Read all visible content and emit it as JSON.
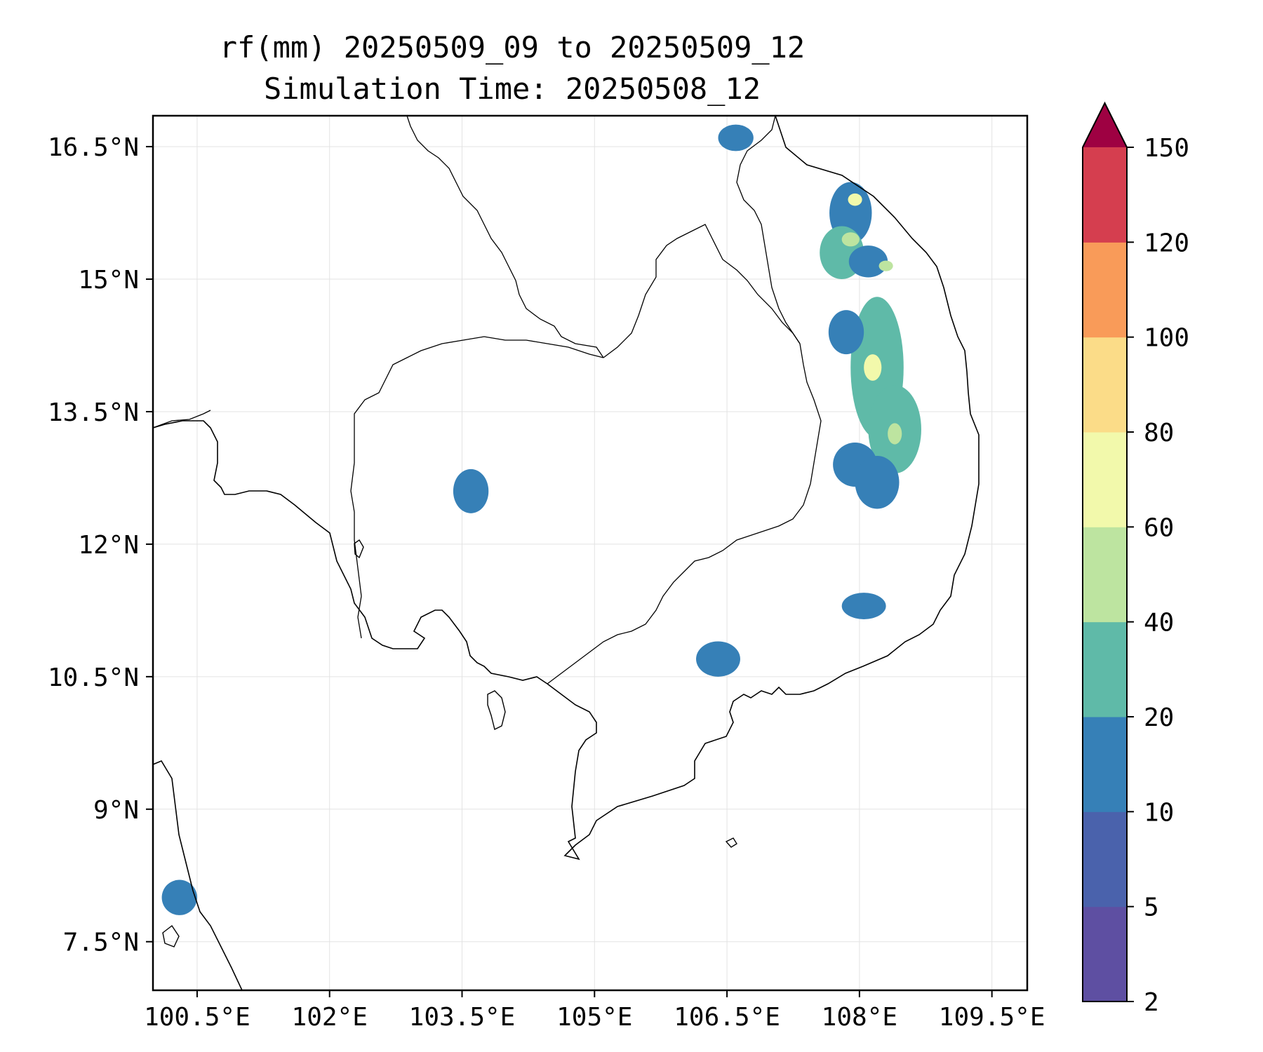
{
  "title": {
    "line1": "rf(mm) 20250509_09 to 20250509_12",
    "line2": "Simulation Time: 20250508_12"
  },
  "map": {
    "lon_range": [
      100.0,
      109.9
    ],
    "lat_range": [
      6.95,
      16.85
    ],
    "lon_ticks": [
      {
        "value": 100.5,
        "label": "100.5°E"
      },
      {
        "value": 102.0,
        "label": "102°E"
      },
      {
        "value": 103.5,
        "label": "103.5°E"
      },
      {
        "value": 105.0,
        "label": "105°E"
      },
      {
        "value": 106.5,
        "label": "106.5°E"
      },
      {
        "value": 108.0,
        "label": "108°E"
      },
      {
        "value": 109.5,
        "label": "109.5°E"
      }
    ],
    "lat_ticks": [
      {
        "value": 16.5,
        "label": "16.5°N"
      },
      {
        "value": 15.0,
        "label": "15°N"
      },
      {
        "value": 13.5,
        "label": "13.5°N"
      },
      {
        "value": 12.0,
        "label": "12°N"
      },
      {
        "value": 10.5,
        "label": "10.5°N"
      },
      {
        "value": 9.0,
        "label": "9°N"
      },
      {
        "value": 7.5,
        "label": "7.5°N"
      }
    ],
    "grid": true
  },
  "colorbar": {
    "levels": [
      {
        "value": 2,
        "label": "2"
      },
      {
        "value": 5,
        "label": "5"
      },
      {
        "value": 10,
        "label": "10"
      },
      {
        "value": 20,
        "label": "20"
      },
      {
        "value": 40,
        "label": "40"
      },
      {
        "value": 60,
        "label": "60"
      },
      {
        "value": 80,
        "label": "80"
      },
      {
        "value": 100,
        "label": "100"
      },
      {
        "value": 120,
        "label": "120"
      },
      {
        "value": 150,
        "label": "150"
      }
    ],
    "colors": [
      "#5e4fa2",
      "#4a62ac",
      "#3680b7",
      "#5fbaa8",
      "#bde4a0",
      "#f2f9ab",
      "#fbdc88",
      "#f99b59",
      "#d53e4f"
    ],
    "extend_color": "#9e0142"
  },
  "rainfall_cells": [
    {
      "lon": 107.9,
      "lat": 15.75,
      "rx": 0.24,
      "ry": 0.35,
      "level": 2
    },
    {
      "lon": 107.8,
      "lat": 15.3,
      "rx": 0.25,
      "ry": 0.3,
      "level": 3
    },
    {
      "lon": 108.2,
      "lat": 14.0,
      "rx": 0.3,
      "ry": 0.8,
      "level": 3
    },
    {
      "lon": 108.4,
      "lat": 13.3,
      "rx": 0.3,
      "ry": 0.5,
      "level": 3
    },
    {
      "lon": 108.1,
      "lat": 15.2,
      "rx": 0.22,
      "ry": 0.18,
      "level": 2
    },
    {
      "lon": 107.85,
      "lat": 14.4,
      "rx": 0.2,
      "ry": 0.25,
      "level": 2
    },
    {
      "lon": 107.95,
      "lat": 12.9,
      "rx": 0.25,
      "ry": 0.25,
      "level": 2
    },
    {
      "lon": 108.2,
      "lat": 12.7,
      "rx": 0.25,
      "ry": 0.3,
      "level": 2
    },
    {
      "lon": 108.05,
      "lat": 11.3,
      "rx": 0.25,
      "ry": 0.15,
      "level": 2
    },
    {
      "lon": 103.6,
      "lat": 12.6,
      "rx": 0.2,
      "ry": 0.25,
      "level": 2
    },
    {
      "lon": 106.6,
      "lat": 16.6,
      "rx": 0.2,
      "ry": 0.15,
      "level": 2
    },
    {
      "lon": 106.4,
      "lat": 10.7,
      "rx": 0.25,
      "ry": 0.2,
      "level": 2
    },
    {
      "lon": 100.3,
      "lat": 8.0,
      "rx": 0.2,
      "ry": 0.2,
      "level": 2
    },
    {
      "lon": 107.95,
      "lat": 15.9,
      "rx": 0.08,
      "ry": 0.07,
      "level": 5
    },
    {
      "lon": 108.15,
      "lat": 14.0,
      "rx": 0.1,
      "ry": 0.15,
      "level": 5
    },
    {
      "lon": 107.9,
      "lat": 15.45,
      "rx": 0.1,
      "ry": 0.08,
      "level": 4
    },
    {
      "lon": 108.4,
      "lat": 13.25,
      "rx": 0.08,
      "ry": 0.12,
      "level": 4
    },
    {
      "lon": 108.3,
      "lat": 15.15,
      "rx": 0.08,
      "ry": 0.06,
      "level": 4
    }
  ]
}
